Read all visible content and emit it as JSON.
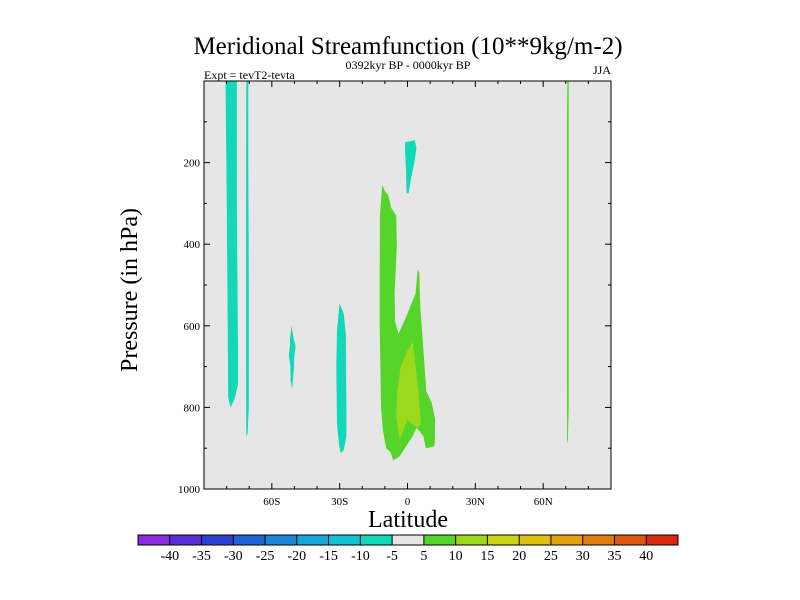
{
  "chart_data": {
    "type": "contour",
    "title": "Meridional Streamfunction (10**9kg/m-2)",
    "subtitle_left": "Expt = tevT2-tevta",
    "subtitle_center": "0392kyr BP - 0000kyr BP",
    "subtitle_right": "JJA",
    "xlabel": "Latitude",
    "ylabel": "Pressure (in hPa)",
    "xlim": [
      -90,
      90
    ],
    "ylim": [
      1000,
      0
    ],
    "x_ticks": [
      {
        "value": -60,
        "label": "60S"
      },
      {
        "value": -30,
        "label": "30S"
      },
      {
        "value": 0,
        "label": "0"
      },
      {
        "value": 30,
        "label": "30N"
      },
      {
        "value": 60,
        "label": "60N"
      }
    ],
    "y_ticks": [
      {
        "value": 200,
        "label": "200"
      },
      {
        "value": 400,
        "label": "400"
      },
      {
        "value": 600,
        "label": "600"
      },
      {
        "value": 800,
        "label": "800"
      },
      {
        "value": 1000,
        "label": "1000"
      }
    ],
    "background_color": "#e6e6e6",
    "colorbar": {
      "labels": [
        "-40",
        "-35",
        "-30",
        "-25",
        "-20",
        "-15",
        "-10",
        "-5",
        "5",
        "10",
        "15",
        "20",
        "25",
        "30",
        "35",
        "40"
      ],
      "colors": [
        "#8a2ce0",
        "#5b2fd8",
        "#2e3fcf",
        "#1f62d5",
        "#1c86d6",
        "#16a8d8",
        "#12c1d2",
        "#10d8b8",
        "#e6e6e6",
        "#55d52a",
        "#9dd81a",
        "#c7d418",
        "#e0c012",
        "#e3a010",
        "#e07c10",
        "#db5812",
        "#d42a10"
      ]
    },
    "regions": [
      {
        "name": "neg-region-south-pole-column",
        "class_range": "-10 to -5",
        "color": "#10d8b8",
        "points": [
          [
            -80.5,
            0
          ],
          [
            -75.5,
            0
          ],
          [
            -75.5,
            290
          ],
          [
            -75.0,
            640
          ],
          [
            -75.0,
            745
          ],
          [
            -76.5,
            780
          ],
          [
            -78.3,
            800
          ],
          [
            -79.3,
            775
          ],
          [
            -79.5,
            600
          ],
          [
            -80.0,
            250
          ]
        ]
      },
      {
        "name": "neg-region-70s-strip",
        "class_range": "-10 to -5",
        "color": "#10d8b8",
        "points": [
          [
            -71.3,
            0
          ],
          [
            -70.4,
            0
          ],
          [
            -70.4,
            200
          ],
          [
            -70.2,
            500
          ],
          [
            -70.2,
            800
          ],
          [
            -70.7,
            865
          ],
          [
            -71.3,
            870
          ],
          [
            -71.4,
            700
          ],
          [
            -71.4,
            300
          ]
        ]
      },
      {
        "name": "neg-region-50s-blob",
        "class_range": "-10 to -5",
        "color": "#10d8b8",
        "points": [
          [
            -51.3,
            600
          ],
          [
            -50.4,
            630
          ],
          [
            -49.5,
            650
          ],
          [
            -50.0,
            672
          ],
          [
            -50.2,
            700
          ],
          [
            -51.0,
            755
          ],
          [
            -51.7,
            735
          ],
          [
            -51.8,
            700
          ],
          [
            -52.5,
            672
          ],
          [
            -52.0,
            650
          ],
          [
            -51.9,
            630
          ]
        ]
      },
      {
        "name": "neg-region-30s-column",
        "class_range": "-10 to -5",
        "color": "#10d8b8",
        "points": [
          [
            -30.0,
            545
          ],
          [
            -28.2,
            570
          ],
          [
            -27.3,
            620
          ],
          [
            -27.2,
            700
          ],
          [
            -27.0,
            800
          ],
          [
            -27.0,
            870
          ],
          [
            -28.2,
            905
          ],
          [
            -29.6,
            912
          ],
          [
            -30.3,
            890
          ],
          [
            -31.2,
            840
          ],
          [
            -31.5,
            700
          ],
          [
            -31.2,
            610
          ]
        ]
      },
      {
        "name": "neg-region-equator-upper",
        "class_range": "-10 to -5",
        "color": "#10d8b8",
        "points": [
          [
            -1.0,
            150
          ],
          [
            3.2,
            145
          ],
          [
            4.0,
            165
          ],
          [
            3.0,
            200
          ],
          [
            1.5,
            240
          ],
          [
            0.5,
            275
          ],
          [
            -0.4,
            275
          ],
          [
            -0.7,
            210
          ],
          [
            -1.1,
            170
          ]
        ]
      },
      {
        "name": "pos-region-equatorial-cell",
        "class_range": "5 to 10",
        "color": "#55d52a",
        "points": [
          [
            -11.2,
            255
          ],
          [
            -9.9,
            270
          ],
          [
            -8.5,
            280
          ],
          [
            -7.3,
            310
          ],
          [
            -5.0,
            330
          ],
          [
            -4.7,
            400
          ],
          [
            -5.7,
            520
          ],
          [
            -5.5,
            590
          ],
          [
            -4.0,
            620
          ],
          [
            0.0,
            570
          ],
          [
            3.6,
            520
          ],
          [
            4.5,
            460
          ],
          [
            5.2,
            470
          ],
          [
            5.7,
            560
          ],
          [
            6.7,
            630
          ],
          [
            8.3,
            760
          ],
          [
            10.8,
            790
          ],
          [
            12.2,
            830
          ],
          [
            12.1,
            870
          ],
          [
            12.0,
            895
          ],
          [
            10.7,
            897
          ],
          [
            8.1,
            900
          ],
          [
            7.0,
            870
          ],
          [
            4.0,
            850
          ],
          [
            2.4,
            870
          ],
          [
            0.0,
            890
          ],
          [
            -3.5,
            920
          ],
          [
            -6.3,
            930
          ],
          [
            -7.5,
            910
          ],
          [
            -9.4,
            900
          ],
          [
            -10.8,
            860
          ],
          [
            -11.7,
            800
          ],
          [
            -12.0,
            700
          ],
          [
            -12.3,
            600
          ],
          [
            -12.3,
            450
          ],
          [
            -12.2,
            330
          ]
        ]
      },
      {
        "name": "pos-region-equatorial-core",
        "class_range": "10 to 15",
        "color": "#9dd81a",
        "points": [
          [
            -3.0,
            700
          ],
          [
            0.0,
            660
          ],
          [
            2.4,
            640
          ],
          [
            3.6,
            700
          ],
          [
            5.0,
            770
          ],
          [
            5.9,
            840
          ],
          [
            4.5,
            850
          ],
          [
            2.0,
            840
          ],
          [
            0.0,
            830
          ],
          [
            -3.5,
            880
          ],
          [
            -5.0,
            820
          ],
          [
            -4.5,
            760
          ]
        ]
      },
      {
        "name": "pos-region-60n-strip",
        "class_range": "5 to 10",
        "color": "#55d52a",
        "points": [
          [
            70.7,
            0
          ],
          [
            71.3,
            0
          ],
          [
            71.3,
            200
          ],
          [
            71.3,
            600
          ],
          [
            71.3,
            800
          ],
          [
            70.9,
            890
          ],
          [
            70.6,
            880
          ],
          [
            70.5,
            700
          ],
          [
            70.5,
            400
          ],
          [
            70.5,
            100
          ]
        ]
      }
    ]
  }
}
